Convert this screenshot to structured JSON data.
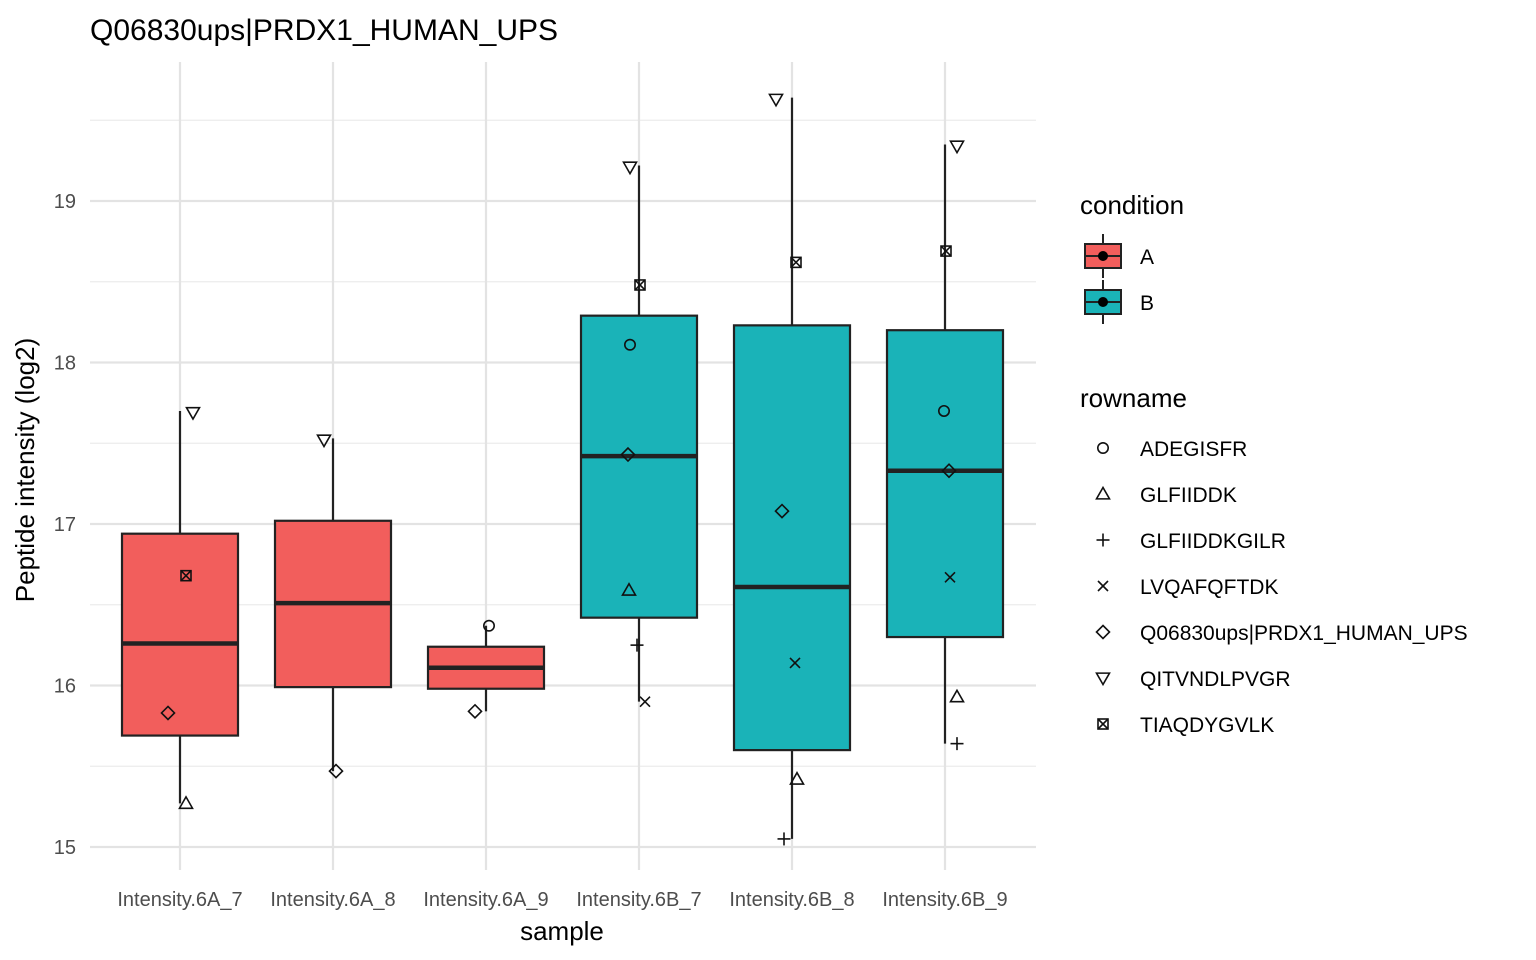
{
  "chart_data": {
    "type": "box",
    "title": "Q06830ups|PRDX1_HUMAN_UPS",
    "xlabel": "sample",
    "ylabel": "Peptide intensity (log2)",
    "ylim": [
      14.9,
      19.8
    ],
    "yticks": [
      15,
      16,
      17,
      18,
      19
    ],
    "grid": true,
    "legend_position": "right",
    "condition_colors": {
      "A": "#f25e5c",
      "B": "#1ab3b8"
    },
    "categories": [
      "Intensity.6A_7",
      "Intensity.6A_8",
      "Intensity.6A_9",
      "Intensity.6B_7",
      "Intensity.6B_8",
      "Intensity.6B_9"
    ],
    "boxes": [
      {
        "sample": "Intensity.6A_7",
        "condition": "A",
        "whisker_low": 15.27,
        "q1": 15.69,
        "median": 16.26,
        "q3": 16.94,
        "whisker_high": 17.7
      },
      {
        "sample": "Intensity.6A_8",
        "condition": "A",
        "whisker_low": 15.47,
        "q1": 15.99,
        "median": 16.51,
        "q3": 17.02,
        "whisker_high": 17.53
      },
      {
        "sample": "Intensity.6A_9",
        "condition": "A",
        "whisker_low": 15.84,
        "q1": 15.98,
        "median": 16.11,
        "q3": 16.24,
        "whisker_high": 16.37
      },
      {
        "sample": "Intensity.6B_7",
        "condition": "B",
        "whisker_low": 15.9,
        "q1": 16.42,
        "median": 17.42,
        "q3": 18.29,
        "whisker_high": 19.22
      },
      {
        "sample": "Intensity.6B_8",
        "condition": "B",
        "whisker_low": 15.05,
        "q1": 15.6,
        "median": 16.61,
        "q3": 18.23,
        "whisker_high": 19.64
      },
      {
        "sample": "Intensity.6B_9",
        "condition": "B",
        "whisker_low": 15.64,
        "q1": 16.3,
        "median": 17.33,
        "q3": 18.2,
        "whisker_high": 19.35
      }
    ],
    "points": [
      {
        "sample": "Intensity.6A_7",
        "rowname": "QITVNDLPVGR",
        "value": 17.69
      },
      {
        "sample": "Intensity.6A_7",
        "rowname": "TIAQDYGVLK",
        "value": 16.68
      },
      {
        "sample": "Intensity.6A_7",
        "rowname": "Q06830ups|PRDX1_HUMAN_UPS",
        "value": 15.83
      },
      {
        "sample": "Intensity.6A_7",
        "rowname": "GLFIIDDK",
        "value": 15.27
      },
      {
        "sample": "Intensity.6A_8",
        "rowname": "QITVNDLPVGR",
        "value": 17.52
      },
      {
        "sample": "Intensity.6A_8",
        "rowname": "Q06830ups|PRDX1_HUMAN_UPS",
        "value": 15.47
      },
      {
        "sample": "Intensity.6A_9",
        "rowname": "ADEGISFR",
        "value": 16.37
      },
      {
        "sample": "Intensity.6A_9",
        "rowname": "Q06830ups|PRDX1_HUMAN_UPS",
        "value": 15.84
      },
      {
        "sample": "Intensity.6B_7",
        "rowname": "QITVNDLPVGR",
        "value": 19.21
      },
      {
        "sample": "Intensity.6B_7",
        "rowname": "TIAQDYGVLK",
        "value": 18.48
      },
      {
        "sample": "Intensity.6B_7",
        "rowname": "ADEGISFR",
        "value": 18.11
      },
      {
        "sample": "Intensity.6B_7",
        "rowname": "Q06830ups|PRDX1_HUMAN_UPS",
        "value": 17.43
      },
      {
        "sample": "Intensity.6B_7",
        "rowname": "GLFIIDDK",
        "value": 16.59
      },
      {
        "sample": "Intensity.6B_7",
        "rowname": "GLFIIDDKGILR",
        "value": 16.25
      },
      {
        "sample": "Intensity.6B_7",
        "rowname": "LVQAFQFTDK",
        "value": 15.9
      },
      {
        "sample": "Intensity.6B_8",
        "rowname": "QITVNDLPVGR",
        "value": 19.63
      },
      {
        "sample": "Intensity.6B_8",
        "rowname": "TIAQDYGVLK",
        "value": 18.62
      },
      {
        "sample": "Intensity.6B_8",
        "rowname": "Q06830ups|PRDX1_HUMAN_UPS",
        "value": 17.08
      },
      {
        "sample": "Intensity.6B_8",
        "rowname": "LVQAFQFTDK",
        "value": 16.14
      },
      {
        "sample": "Intensity.6B_8",
        "rowname": "GLFIIDDK",
        "value": 15.42
      },
      {
        "sample": "Intensity.6B_8",
        "rowname": "GLFIIDDKGILR",
        "value": 15.05
      },
      {
        "sample": "Intensity.6B_9",
        "rowname": "QITVNDLPVGR",
        "value": 19.34
      },
      {
        "sample": "Intensity.6B_9",
        "rowname": "TIAQDYGVLK",
        "value": 18.69
      },
      {
        "sample": "Intensity.6B_9",
        "rowname": "ADEGISFR",
        "value": 17.7
      },
      {
        "sample": "Intensity.6B_9",
        "rowname": "Q06830ups|PRDX1_HUMAN_UPS",
        "value": 17.33
      },
      {
        "sample": "Intensity.6B_9",
        "rowname": "LVQAFQFTDK",
        "value": 16.67
      },
      {
        "sample": "Intensity.6B_9",
        "rowname": "GLFIIDDK",
        "value": 15.93
      },
      {
        "sample": "Intensity.6B_9",
        "rowname": "GLFIIDDKGILR",
        "value": 15.64
      }
    ],
    "legend": {
      "condition_title": "condition",
      "conditions": [
        "A",
        "B"
      ],
      "rowname_title": "rowname",
      "rownames": [
        {
          "label": "ADEGISFR",
          "shape": "circle"
        },
        {
          "label": "GLFIIDDK",
          "shape": "triangle-up"
        },
        {
          "label": "GLFIIDDKGILR",
          "shape": "plus"
        },
        {
          "label": "LVQAFQFTDK",
          "shape": "cross"
        },
        {
          "label": "Q06830ups|PRDX1_HUMAN_UPS",
          "shape": "diamond"
        },
        {
          "label": "QITVNDLPVGR",
          "shape": "triangle-down"
        },
        {
          "label": "TIAQDYGVLK",
          "shape": "square-cross"
        }
      ]
    }
  }
}
